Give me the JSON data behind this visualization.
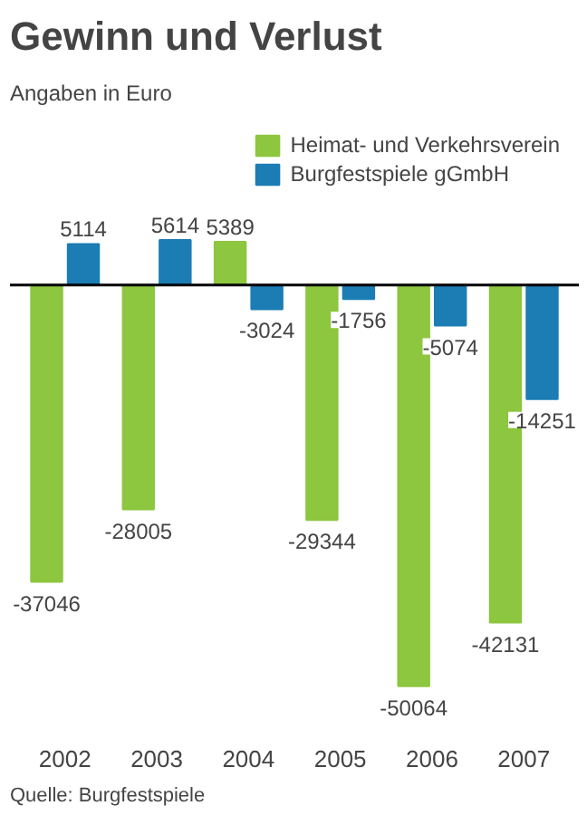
{
  "chart_data": {
    "type": "bar",
    "title": "Gewinn und Verlust",
    "subtitle": "Angaben in Euro",
    "categories": [
      "2002",
      "2003",
      "2004",
      "2005",
      "2006",
      "2007"
    ],
    "series": [
      {
        "name": "Heimat- und Verkehrsverein",
        "color": "#8dc63f",
        "values": [
          -37046,
          -28005,
          5389,
          -29344,
          -50064,
          -42131
        ]
      },
      {
        "name": "Burgfestspiele gGmbH",
        "color": "#1b7db4",
        "values": [
          5114,
          5614,
          -3024,
          -1756,
          -5074,
          -14251
        ]
      }
    ],
    "data_labels": true,
    "grid": false,
    "legend": "top right",
    "annotations": [
      "Quelle: Burgfestspiele"
    ]
  }
}
